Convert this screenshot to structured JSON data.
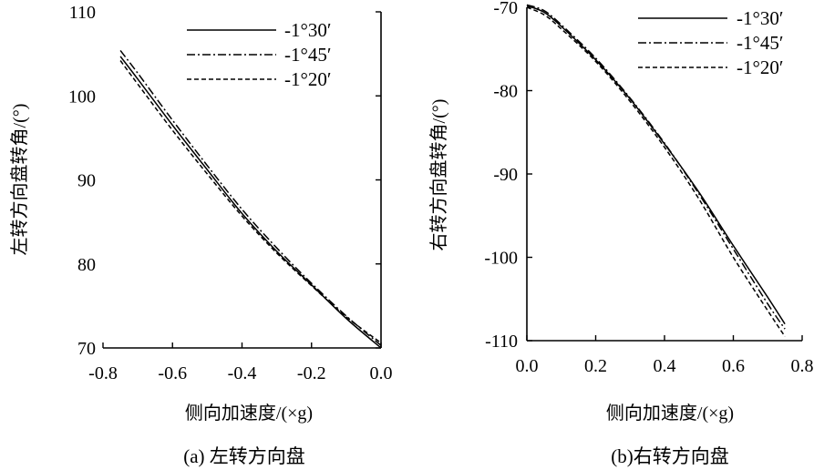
{
  "chart_data": [
    {
      "type": "line",
      "caption": "(a) 左转方向盘",
      "xlabel": "侧向加速度/(×g)",
      "ylabel": "左转方向盘转角/(°)",
      "xlim": [
        -0.8,
        0.0
      ],
      "ylim": [
        70,
        110
      ],
      "xticks": [
        -0.8,
        -0.6,
        -0.4,
        -0.2,
        0.0
      ],
      "xtick_labels": [
        "-0.8",
        "-0.6",
        "-0.4",
        "-0.2",
        "0.0"
      ],
      "yticks": [
        70,
        80,
        90,
        100,
        110
      ],
      "ytick_labels": [
        "70",
        "80",
        "90",
        "100",
        "110"
      ],
      "legend_position": "top-right",
      "series": [
        {
          "name": "-1°30′",
          "style": "solid",
          "x": [
            -0.75,
            -0.7,
            -0.6,
            -0.5,
            -0.4,
            -0.3,
            -0.2,
            -0.1,
            0.0
          ],
          "y": [
            104.7,
            102.0,
            96.5,
            91.2,
            86.0,
            81.5,
            77.5,
            73.5,
            70.0
          ]
        },
        {
          "name": "-1°45′",
          "style": "dashdot",
          "x": [
            -0.75,
            -0.7,
            -0.6,
            -0.5,
            -0.4,
            -0.3,
            -0.2,
            -0.1,
            0.0
          ],
          "y": [
            105.4,
            102.7,
            97.1,
            91.7,
            86.5,
            81.9,
            77.7,
            73.8,
            70.3
          ]
        },
        {
          "name": "-1°20′",
          "style": "dashed",
          "x": [
            -0.75,
            -0.7,
            -0.6,
            -0.5,
            -0.4,
            -0.3,
            -0.2,
            -0.1,
            0.0
          ],
          "y": [
            104.2,
            101.4,
            95.9,
            90.7,
            85.7,
            81.3,
            77.4,
            73.7,
            70.6
          ]
        }
      ]
    },
    {
      "type": "line",
      "caption": "(b)右转方向盘",
      "xlabel": "侧向加速度/(×g)",
      "ylabel": "右转方向盘转角/(°)",
      "xlim": [
        0.0,
        0.8
      ],
      "ylim": [
        -110,
        -70
      ],
      "xticks": [
        0.0,
        0.2,
        0.4,
        0.6,
        0.8
      ],
      "xtick_labels": [
        "0.0",
        "0.2",
        "0.4",
        "0.6",
        "0.8"
      ],
      "yticks": [
        -70,
        -80,
        -90,
        -100,
        -110
      ],
      "ytick_labels": [
        "-70",
        "-80",
        "-90",
        "-100",
        "-110"
      ],
      "legend_position": "top-right",
      "series": [
        {
          "name": "-1°30′",
          "style": "solid",
          "x": [
            0.0,
            0.05,
            0.1,
            0.2,
            0.3,
            0.4,
            0.5,
            0.6,
            0.7,
            0.75
          ],
          "y": [
            -69.8,
            -70.6,
            -72.3,
            -76.3,
            -81.0,
            -86.4,
            -92.2,
            -98.6,
            -104.8,
            -108.0
          ]
        },
        {
          "name": "-1°45′",
          "style": "dashdot",
          "x": [
            0.0,
            0.05,
            0.1,
            0.2,
            0.3,
            0.4,
            0.5,
            0.6,
            0.7,
            0.75
          ],
          "y": [
            -69.7,
            -70.4,
            -72.1,
            -76.1,
            -80.9,
            -86.3,
            -92.4,
            -99.0,
            -105.6,
            -108.6
          ]
        },
        {
          "name": "-1°20′",
          "style": "dashed",
          "x": [
            0.0,
            0.05,
            0.1,
            0.2,
            0.3,
            0.4,
            0.5,
            0.6,
            0.7,
            0.75
          ],
          "y": [
            -70.0,
            -70.9,
            -72.6,
            -76.5,
            -81.3,
            -86.8,
            -93.0,
            -100.0,
            -106.4,
            -109.5
          ]
        }
      ]
    }
  ]
}
